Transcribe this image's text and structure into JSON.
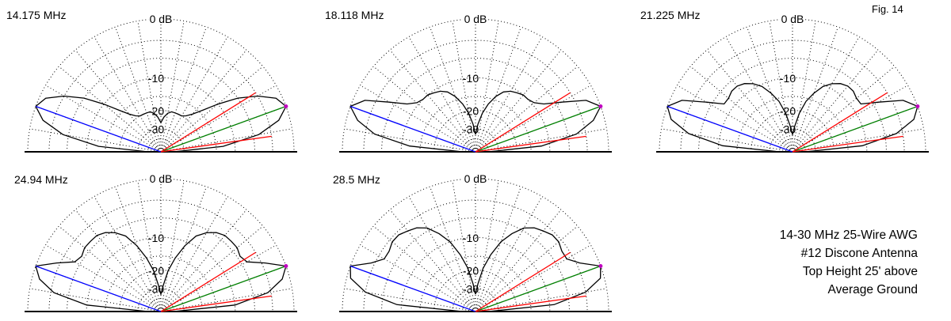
{
  "figure_label": "Fig. 14",
  "caption": [
    "14-30 MHz 25-Wire AWG",
    "#12 Discone Antenna",
    "Top Height 25' above",
    "Average Ground"
  ],
  "colors": {
    "pattern": "#000000",
    "blue": "#0000ff",
    "red": "#ff0000",
    "green": "#008000",
    "marker": "#c000c0"
  },
  "chart_data": [
    {
      "type": "polar-elevation",
      "title": "14.175 MHz",
      "ring_labels": [
        "0 dB",
        "-10",
        "-20",
        "-30"
      ],
      "ring_values_db": [
        0,
        -10,
        -20,
        -30
      ],
      "pattern": [
        {
          "angle_deg": 0,
          "gain_db": -40
        },
        {
          "angle_deg": 5,
          "gain_db": -13
        },
        {
          "angle_deg": 10,
          "gain_db": -5
        },
        {
          "angle_deg": 15,
          "gain_db": -1.5
        },
        {
          "angle_deg": 20,
          "gain_db": 0
        },
        {
          "angle_deg": 25,
          "gain_db": -0.8
        },
        {
          "angle_deg": 30,
          "gain_db": -3
        },
        {
          "angle_deg": 35,
          "gain_db": -6
        },
        {
          "angle_deg": 40,
          "gain_db": -10
        },
        {
          "angle_deg": 45,
          "gain_db": -14
        },
        {
          "angle_deg": 50,
          "gain_db": -17
        },
        {
          "angle_deg": 55,
          "gain_db": -19
        },
        {
          "angle_deg": 60,
          "gain_db": -20
        },
        {
          "angle_deg": 65,
          "gain_db": -20
        },
        {
          "angle_deg": 70,
          "gain_db": -20
        },
        {
          "angle_deg": 75,
          "gain_db": -20
        },
        {
          "angle_deg": 80,
          "gain_db": -21
        },
        {
          "angle_deg": 85,
          "gain_db": -23
        },
        {
          "angle_deg": 90,
          "gain_db": -26
        }
      ]
    },
    {
      "type": "polar-elevation",
      "title": "18.118 MHz",
      "ring_labels": [
        "0 dB",
        "-10",
        "-20",
        "-30"
      ],
      "ring_values_db": [
        0,
        -10,
        -20,
        -30
      ],
      "pattern": [
        {
          "angle_deg": 0,
          "gain_db": -40
        },
        {
          "angle_deg": 5,
          "gain_db": -12
        },
        {
          "angle_deg": 10,
          "gain_db": -4.5
        },
        {
          "angle_deg": 15,
          "gain_db": -1.5
        },
        {
          "angle_deg": 20,
          "gain_db": 0
        },
        {
          "angle_deg": 25,
          "gain_db": -1.5
        },
        {
          "angle_deg": 30,
          "gain_db": -5
        },
        {
          "angle_deg": 35,
          "gain_db": -8
        },
        {
          "angle_deg": 40,
          "gain_db": -9.5
        },
        {
          "angle_deg": 45,
          "gain_db": -10
        },
        {
          "angle_deg": 50,
          "gain_db": -10
        },
        {
          "angle_deg": 55,
          "gain_db": -10.5
        },
        {
          "angle_deg": 60,
          "gain_db": -11
        },
        {
          "angle_deg": 65,
          "gain_db": -12
        },
        {
          "angle_deg": 70,
          "gain_db": -14
        },
        {
          "angle_deg": 75,
          "gain_db": -17
        },
        {
          "angle_deg": 80,
          "gain_db": -21
        },
        {
          "angle_deg": 85,
          "gain_db": -27
        },
        {
          "angle_deg": 90,
          "gain_db": -35
        }
      ]
    },
    {
      "type": "polar-elevation",
      "title": "21.225 MHz",
      "ring_labels": [
        "0 dB",
        "-10",
        "-20",
        "-30"
      ],
      "ring_values_db": [
        0,
        -10,
        -20,
        -30
      ],
      "pattern": [
        {
          "angle_deg": 0,
          "gain_db": -40
        },
        {
          "angle_deg": 5,
          "gain_db": -11
        },
        {
          "angle_deg": 10,
          "gain_db": -4
        },
        {
          "angle_deg": 15,
          "gain_db": -1
        },
        {
          "angle_deg": 20,
          "gain_db": 0
        },
        {
          "angle_deg": 25,
          "gain_db": -1.5
        },
        {
          "angle_deg": 30,
          "gain_db": -5
        },
        {
          "angle_deg": 35,
          "gain_db": -8
        },
        {
          "angle_deg": 40,
          "gain_db": -8
        },
        {
          "angle_deg": 45,
          "gain_db": -7.5
        },
        {
          "angle_deg": 50,
          "gain_db": -7.5
        },
        {
          "angle_deg": 55,
          "gain_db": -8
        },
        {
          "angle_deg": 60,
          "gain_db": -9
        },
        {
          "angle_deg": 65,
          "gain_db": -10.5
        },
        {
          "angle_deg": 70,
          "gain_db": -13
        },
        {
          "angle_deg": 75,
          "gain_db": -16
        },
        {
          "angle_deg": 80,
          "gain_db": -21
        },
        {
          "angle_deg": 85,
          "gain_db": -28
        },
        {
          "angle_deg": 90,
          "gain_db": -35
        }
      ]
    },
    {
      "type": "polar-elevation",
      "title": "24.94 MHz",
      "ring_labels": [
        "0 dB",
        "-10",
        "-20",
        "-30"
      ],
      "ring_values_db": [
        0,
        -10,
        -20,
        -30
      ],
      "pattern": [
        {
          "angle_deg": 0,
          "gain_db": -40
        },
        {
          "angle_deg": 5,
          "gain_db": -10
        },
        {
          "angle_deg": 10,
          "gain_db": -3.5
        },
        {
          "angle_deg": 15,
          "gain_db": -1
        },
        {
          "angle_deg": 20,
          "gain_db": 0
        },
        {
          "angle_deg": 25,
          "gain_db": -2.5
        },
        {
          "angle_deg": 30,
          "gain_db": -5
        },
        {
          "angle_deg": 35,
          "gain_db": -5.5
        },
        {
          "angle_deg": 40,
          "gain_db": -5
        },
        {
          "angle_deg": 45,
          "gain_db": -5
        },
        {
          "angle_deg": 50,
          "gain_db": -5
        },
        {
          "angle_deg": 55,
          "gain_db": -5.5
        },
        {
          "angle_deg": 60,
          "gain_db": -6.5
        },
        {
          "angle_deg": 65,
          "gain_db": -8
        },
        {
          "angle_deg": 70,
          "gain_db": -11
        },
        {
          "angle_deg": 75,
          "gain_db": -15
        },
        {
          "angle_deg": 80,
          "gain_db": -20
        },
        {
          "angle_deg": 85,
          "gain_db": -28
        },
        {
          "angle_deg": 90,
          "gain_db": -35
        }
      ]
    },
    {
      "type": "polar-elevation",
      "title": "28.5 MHz",
      "ring_labels": [
        "0 dB",
        "-10",
        "-20",
        "-30"
      ],
      "ring_values_db": [
        0,
        -10,
        -20,
        -30
      ],
      "pattern": [
        {
          "angle_deg": 0,
          "gain_db": -40
        },
        {
          "angle_deg": 5,
          "gain_db": -9
        },
        {
          "angle_deg": 10,
          "gain_db": -3
        },
        {
          "angle_deg": 15,
          "gain_db": -0.5
        },
        {
          "angle_deg": 20,
          "gain_db": 0
        },
        {
          "angle_deg": 25,
          "gain_db": -2.5
        },
        {
          "angle_deg": 30,
          "gain_db": -4
        },
        {
          "angle_deg": 35,
          "gain_db": -4
        },
        {
          "angle_deg": 40,
          "gain_db": -3.5
        },
        {
          "angle_deg": 45,
          "gain_db": -3.5
        },
        {
          "angle_deg": 50,
          "gain_db": -4
        },
        {
          "angle_deg": 55,
          "gain_db": -4.5
        },
        {
          "angle_deg": 60,
          "gain_db": -5.5
        },
        {
          "angle_deg": 65,
          "gain_db": -7.5
        },
        {
          "angle_deg": 70,
          "gain_db": -10
        },
        {
          "angle_deg": 75,
          "gain_db": -14
        },
        {
          "angle_deg": 80,
          "gain_db": -19
        },
        {
          "angle_deg": 85,
          "gain_db": -27
        },
        {
          "angle_deg": 90,
          "gain_db": -35
        }
      ]
    }
  ]
}
